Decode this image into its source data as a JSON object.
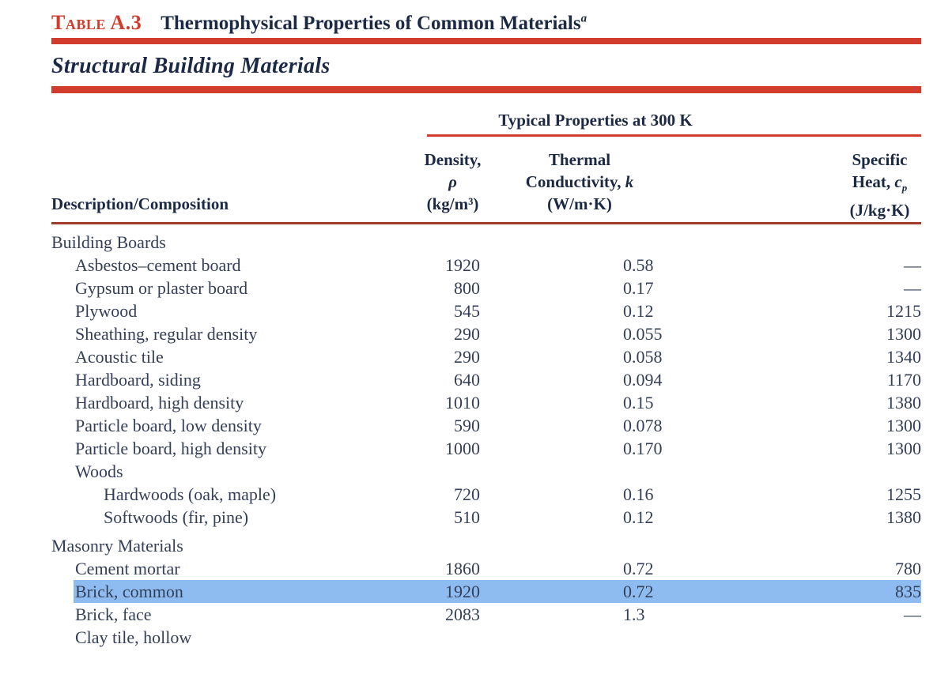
{
  "header": {
    "table_label": "Table A.3",
    "title": "Thermophysical Properties of Common Materials",
    "title_note": "a",
    "section_title": "Structural Building Materials"
  },
  "table": {
    "group_header": "Typical Properties at 300 K",
    "columns": {
      "description": "Description/Composition",
      "density_line1": "Density,",
      "density_symbol": "ρ",
      "density_units": "(kg/m³)",
      "k_line1": "Thermal",
      "k_line2_text": "Conductivity, ",
      "k_symbol": "k",
      "k_units": "(W/m·K)",
      "cp_line1": "Specific",
      "cp_line2_text": "Heat, ",
      "cp_symbol": "c",
      "cp_symbol_sub": "p",
      "cp_units": "(J/kg·K)"
    },
    "rows": [
      {
        "label": "Building Boards",
        "indent": 0,
        "section": true,
        "density": "",
        "k": "",
        "cp": ""
      },
      {
        "label": "Asbestos–cement board",
        "indent": 1,
        "section": false,
        "density": "1920",
        "k": "0.58",
        "cp": "—"
      },
      {
        "label": "Gypsum or plaster board",
        "indent": 1,
        "section": false,
        "density": "800",
        "k": "0.17",
        "cp": "—"
      },
      {
        "label": "Plywood",
        "indent": 1,
        "section": false,
        "density": "545",
        "k": "0.12",
        "cp": "1215"
      },
      {
        "label": "Sheathing, regular density",
        "indent": 1,
        "section": false,
        "density": "290",
        "k": "0.055",
        "cp": "1300"
      },
      {
        "label": "Acoustic tile",
        "indent": 1,
        "section": false,
        "density": "290",
        "k": "0.058",
        "cp": "1340"
      },
      {
        "label": "Hardboard, siding",
        "indent": 1,
        "section": false,
        "density": "640",
        "k": "0.094",
        "cp": "1170"
      },
      {
        "label": "Hardboard, high density",
        "indent": 1,
        "section": false,
        "density": "1010",
        "k": "0.15",
        "cp": "1380"
      },
      {
        "label": "Particle board, low density",
        "indent": 1,
        "section": false,
        "density": "590",
        "k": "0.078",
        "cp": "1300"
      },
      {
        "label": "Particle board, high density",
        "indent": 1,
        "section": false,
        "density": "1000",
        "k": "0.170",
        "cp": "1300"
      },
      {
        "label": "Woods",
        "indent": 1,
        "section": true,
        "density": "",
        "k": "",
        "cp": ""
      },
      {
        "label": "Hardwoods (oak, maple)",
        "indent": 2,
        "section": false,
        "density": "720",
        "k": "0.16",
        "cp": "1255"
      },
      {
        "label": "Softwoods (fir, pine)",
        "indent": 2,
        "section": false,
        "density": "510",
        "k": "0.12",
        "cp": "1380"
      },
      {
        "label": "Masonry Materials",
        "indent": 0,
        "section": true,
        "gap_before": true,
        "density": "",
        "k": "",
        "cp": ""
      },
      {
        "label": "Cement mortar",
        "indent": 1,
        "section": false,
        "density": "1860",
        "k": "0.72",
        "cp": "780"
      },
      {
        "label": "Brick, common",
        "indent": 1,
        "section": false,
        "highlighted": true,
        "density": "1920",
        "k": "0.72",
        "cp": "835"
      },
      {
        "label": "Brick, face",
        "indent": 1,
        "section": false,
        "density": "2083",
        "k": "1.3",
        "cp": "—"
      },
      {
        "label": "Clay tile, hollow",
        "indent": 1,
        "section": false,
        "density": "",
        "k": "",
        "cp": ""
      }
    ]
  },
  "colors": {
    "accent_red": "#d23c2c",
    "highlight_blue": "#8fbcf0",
    "heading_ink": "#1b2945",
    "body_ink": "#333f58"
  }
}
